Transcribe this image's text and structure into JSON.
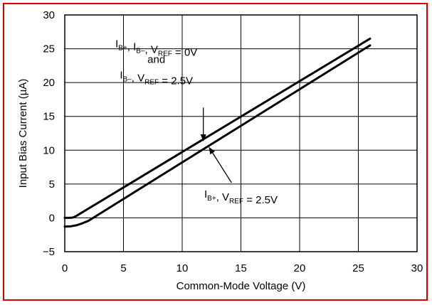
{
  "chart_data": {
    "type": "line",
    "xlabel": "Common-Mode Voltage (V)",
    "ylabel": "Input Bias Current (µA)",
    "xlim": [
      0,
      30
    ],
    "ylim": [
      -5,
      30
    ],
    "xticks": [
      0,
      5,
      10,
      15,
      20,
      25,
      30
    ],
    "yticks": [
      -5,
      0,
      5,
      10,
      15,
      20,
      25,
      30
    ],
    "grid": true,
    "frame_color": "#d40000",
    "series": [
      {
        "x": [
          0,
          0.4,
          0.7,
          1.0,
          26
        ],
        "y": [
          0.0,
          0.0,
          0.05,
          0.3,
          26.5
        ]
      },
      {
        "x": [
          0,
          0.5,
          1.0,
          1.5,
          2.0,
          26
        ],
        "y": [
          -1.3,
          -1.25,
          -1.1,
          -0.8,
          -0.45,
          25.5
        ]
      }
    ],
    "annotations": [
      {
        "lines": [
          [
            {
              "t": "I"
            },
            {
              "t": "B+",
              "sub": true
            },
            {
              "t": ", I"
            },
            {
              "t": "B–",
              "sub": true
            },
            {
              "t": ", V"
            },
            {
              "t": "REF",
              "sub": true
            },
            {
              "t": " = 0V"
            }
          ],
          [
            {
              "t": "and"
            }
          ],
          [
            {
              "t": "I"
            },
            {
              "t": "B–",
              "sub": true
            },
            {
              "t": ", V"
            },
            {
              "t": "REF",
              "sub": true
            },
            {
              "t": " = 2.5V"
            }
          ]
        ],
        "text_anchor_at": [
          7.8,
          25.2
        ],
        "arrow_from": [
          11.8,
          16.3
        ],
        "arrow_to": [
          11.8,
          11.4
        ]
      },
      {
        "lines": [
          [
            {
              "t": "I"
            },
            {
              "t": "B+",
              "sub": true
            },
            {
              "t": ", V"
            },
            {
              "t": "REF",
              "sub": true
            },
            {
              "t": " = 2.5V"
            }
          ]
        ],
        "text_anchor_at": [
          15.0,
          3.0
        ],
        "arrow_from": [
          14.2,
          5.2
        ],
        "arrow_to": [
          12.3,
          10.4
        ]
      }
    ]
  }
}
